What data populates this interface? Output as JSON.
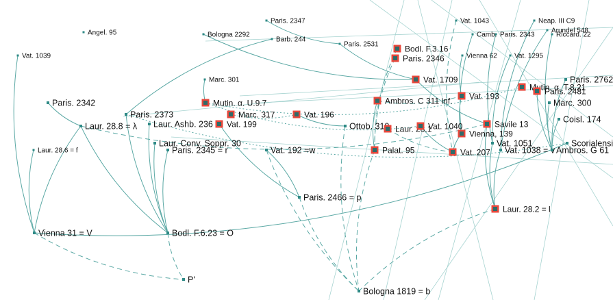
{
  "nodes": [
    {
      "id": "angel95",
      "label": "Angel. 95",
      "kind": "small"
    },
    {
      "id": "vat1039",
      "label": "Vat. 1039",
      "kind": "small"
    },
    {
      "id": "paris2347",
      "label": "Paris. 2347",
      "kind": "small"
    },
    {
      "id": "bologna2292",
      "label": "Bologna 2292",
      "kind": "small"
    },
    {
      "id": "barb244",
      "label": "Barb. 244",
      "kind": "small"
    },
    {
      "id": "paris2531",
      "label": "Paris. 2531",
      "kind": "small"
    },
    {
      "id": "bodlf316",
      "label": "Bodl. F.3.16",
      "kind": "highlight"
    },
    {
      "id": "paris2346",
      "label": "Paris. 2346",
      "kind": "highlight"
    },
    {
      "id": "vat1043",
      "label": "Vat. 1043",
      "kind": "small"
    },
    {
      "id": "neap3c9",
      "label": "Neap. III C9",
      "kind": "small"
    },
    {
      "id": "arundel548",
      "label": "Arundel 548",
      "kind": "small"
    },
    {
      "id": "camb",
      "label": "Camb.",
      "kind": "small"
    },
    {
      "id": "paris2343",
      "label": "Paris. 2343",
      "kind": "small"
    },
    {
      "id": "riccard22",
      "label": "Riccard. 22",
      "kind": "small"
    },
    {
      "id": "vienna62",
      "label": "Vienna 62",
      "kind": "small"
    },
    {
      "id": "vat1295",
      "label": "Vat. 1295",
      "kind": "small"
    },
    {
      "id": "marc301",
      "label": "Marc. 301",
      "kind": "small"
    },
    {
      "id": "vat1709",
      "label": "Vat. 1709",
      "kind": "highlight"
    },
    {
      "id": "paris2762",
      "label": "Paris. 2762",
      "kind": "medium"
    },
    {
      "id": "mutint821",
      "label": "Mutin. α. T.8.21",
      "kind": "highlight"
    },
    {
      "id": "paris2481",
      "label": "Paris. 2481",
      "kind": "highlight"
    },
    {
      "id": "paris2342",
      "label": "Paris. 2342",
      "kind": "medium"
    },
    {
      "id": "mutinu97",
      "label": "Mutin. α. U.9.7",
      "kind": "highlight"
    },
    {
      "id": "ambrosc311",
      "label": "Ambros. C 311 inf.",
      "kind": "highlight"
    },
    {
      "id": "vat193",
      "label": "Vat. 193",
      "kind": "highlight"
    },
    {
      "id": "marc300",
      "label": "Marc. 300",
      "kind": "medium"
    },
    {
      "id": "paris2373",
      "label": "Paris. 2373",
      "kind": "medium"
    },
    {
      "id": "marc317",
      "label": "Marc. 317",
      "kind": "highlight"
    },
    {
      "id": "vat196",
      "label": "Vat. 196",
      "kind": "highlight"
    },
    {
      "id": "laur288",
      "label": "Laur. 28.8 = λ",
      "kind": "medium"
    },
    {
      "id": "laurashb236",
      "label": "Laur. Ashb. 236",
      "kind": "medium"
    },
    {
      "id": "vat199",
      "label": "Vat. 199",
      "kind": "highlight"
    },
    {
      "id": "ottob310",
      "label": "Ottob. 310",
      "kind": "medium"
    },
    {
      "id": "laur281",
      "label": "Laur. 28.1",
      "kind": "highlight"
    },
    {
      "id": "vat1040",
      "label": "Vat. 1040",
      "kind": "highlight"
    },
    {
      "id": "savile13",
      "label": "Savile 13",
      "kind": "highlight"
    },
    {
      "id": "coisl174",
      "label": "Coisl. 174",
      "kind": "medium"
    },
    {
      "id": "vienna139",
      "label": "Vienna, 139",
      "kind": "highlight"
    },
    {
      "id": "laur286",
      "label": "Laur. 28.6 = f",
      "kind": "small"
    },
    {
      "id": "laurconv30",
      "label": "Laur. Conv. Soppr. 30",
      "kind": "medium"
    },
    {
      "id": "paris2345",
      "label": "Paris. 2345 = r",
      "kind": "medium"
    },
    {
      "id": "vat192",
      "label": "Vat. 192 =w",
      "kind": "medium"
    },
    {
      "id": "palat95",
      "label": "Palat. 95",
      "kind": "highlight"
    },
    {
      "id": "vat1051",
      "label": "Vat. 1051",
      "kind": "medium"
    },
    {
      "id": "vat1038",
      "label": "Vat. 1038 = v",
      "kind": "medium"
    },
    {
      "id": "ambrosg61",
      "label": "Ambros. G 61",
      "kind": "medium"
    },
    {
      "id": "scorialensis",
      "label": "Scorialensis",
      "kind": "medium"
    },
    {
      "id": "vat207",
      "label": "Vat. 207",
      "kind": "highlight"
    },
    {
      "id": "paris2466",
      "label": "Paris. 2466 = p",
      "kind": "medium"
    },
    {
      "id": "laur282",
      "label": "Laur. 28.2 = l",
      "kind": "highlight"
    },
    {
      "id": "vienna31",
      "label": "Vienna 31 = V",
      "kind": "medium"
    },
    {
      "id": "bodlf623",
      "label": "Bodl. F.6.23 = O",
      "kind": "medium"
    },
    {
      "id": "pprime",
      "label": "P'",
      "kind": "medium"
    },
    {
      "id": "bologna1819",
      "label": "Bologna 1819 = b",
      "kind": "medium"
    }
  ],
  "edges": [
    {
      "from": "vat1039",
      "to": "vienna31",
      "style": "solid"
    },
    {
      "from": "laur286",
      "to": "vienna31",
      "style": "solid"
    },
    {
      "from": "laur288",
      "to": "vienna31",
      "style": "solid"
    },
    {
      "from": "paris2342",
      "to": "laur288",
      "style": "solid"
    },
    {
      "from": "laur288",
      "to": "bodlf623",
      "style": "solid"
    },
    {
      "from": "paris2373",
      "to": "bodlf623",
      "style": "solid"
    },
    {
      "from": "laurashb236",
      "to": "bodlf623",
      "style": "solid"
    },
    {
      "from": "laurconv30",
      "to": "bodlf623",
      "style": "solid"
    },
    {
      "from": "paris2345",
      "to": "bodlf623",
      "style": "solid"
    },
    {
      "from": "vienna31",
      "to": "pprime",
      "style": "dashed"
    },
    {
      "from": "bodlf623",
      "to": "pprime",
      "style": "dashed"
    },
    {
      "from": "vienna31",
      "to": "scorialensis",
      "style": "solid"
    },
    {
      "from": "vat192",
      "to": "bologna1819",
      "style": "dashed"
    },
    {
      "from": "paris2466",
      "to": "bologna1819",
      "style": "dashed"
    },
    {
      "from": "ottob310",
      "to": "bologna1819",
      "style": "dashed"
    },
    {
      "from": "palat95",
      "to": "bologna1819",
      "style": "dashed"
    },
    {
      "from": "laur282",
      "to": "bologna1819",
      "style": "dashed"
    },
    {
      "from": "vat1051",
      "to": "laur282",
      "style": "solid"
    },
    {
      "from": "vat1038",
      "to": "laur282",
      "style": "solid"
    },
    {
      "from": "savile13",
      "to": "laur282",
      "style": "solid"
    },
    {
      "from": "bologna2292",
      "to": "vat1709",
      "style": "solid"
    },
    {
      "from": "paris2531",
      "to": "vat1709",
      "style": "solid"
    },
    {
      "from": "vat1709",
      "to": "savile13",
      "style": "solid"
    },
    {
      "from": "vat193",
      "to": "vienna139",
      "style": "solid"
    },
    {
      "from": "ambrosc311",
      "to": "vat193",
      "style": "dashed"
    },
    {
      "from": "mutinu97",
      "to": "mutint821",
      "style": "dotted"
    },
    {
      "from": "marc317",
      "to": "vat196",
      "style": "dotted"
    },
    {
      "from": "vat196",
      "to": "ottob310",
      "style": "solid"
    },
    {
      "from": "vat199",
      "to": "paris2466",
      "style": "solid"
    },
    {
      "from": "paris2466",
      "to": "vat192",
      "style": "solid"
    },
    {
      "from": "laur281",
      "to": "vat207",
      "style": "dashed"
    },
    {
      "from": "vat1040",
      "to": "vat207",
      "style": "solid"
    },
    {
      "from": "marc300",
      "to": "ambrosg61",
      "style": "solid"
    },
    {
      "from": "coisl174",
      "to": "ambrosg61",
      "style": "solid"
    },
    {
      "from": "paris2762",
      "to": "ambrosg61",
      "style": "solid"
    },
    {
      "from": "paris2481",
      "to": "ambrosg61",
      "style": "solid"
    },
    {
      "from": "vat1043",
      "to": "vat207",
      "style": "dashed"
    },
    {
      "from": "neap3c9",
      "to": "vat1038",
      "style": "solid"
    },
    {
      "from": "arundel548",
      "to": "vat1038",
      "style": "solid"
    },
    {
      "from": "camb",
      "to": "vienna139",
      "style": "solid"
    },
    {
      "from": "paris2343",
      "to": "vat1051",
      "style": "solid"
    },
    {
      "from": "riccard22",
      "to": "ambrosg61",
      "style": "solid"
    },
    {
      "from": "vienna62",
      "to": "vat193",
      "style": "solid"
    },
    {
      "from": "vat1295",
      "to": "vat1051",
      "style": "solid"
    },
    {
      "from": "paris2347",
      "to": "paris2531",
      "style": "solid"
    },
    {
      "from": "barb244",
      "to": "paris2373",
      "style": "solid"
    },
    {
      "from": "marc301",
      "to": "mutinu97",
      "style": "solid"
    },
    {
      "from": "bodlf316",
      "to": "palat95",
      "style": "dashed"
    },
    {
      "from": "paris2346",
      "to": "palat95",
      "style": "dashed"
    },
    {
      "from": "ambrosc311",
      "to": "palat95",
      "style": "solid"
    },
    {
      "from": "vienna139",
      "to": "vat207",
      "style": "solid"
    },
    {
      "from": "paris2373",
      "to": "scorialensis",
      "style": "dotted"
    },
    {
      "from": "mutinu97",
      "to": "vat1040",
      "style": "dotted"
    },
    {
      "from": "laur288",
      "to": "savile13",
      "style": "dashed"
    }
  ]
}
